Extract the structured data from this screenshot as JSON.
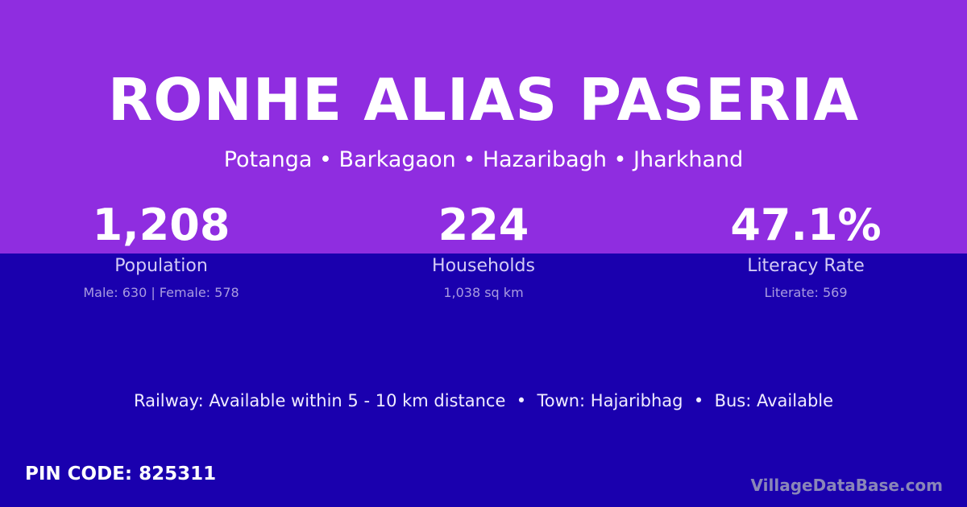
{
  "title": "RONHE ALIAS PASERIA",
  "subtitle": "Potanga • Barkagaon • Hazaribagh • Jharkhand",
  "stats": [
    {
      "value": "1,208",
      "label": "Population",
      "detail": "Male: 630 | Female: 578"
    },
    {
      "value": "224",
      "label": "Households",
      "detail": "1,038 sq km"
    },
    {
      "value": "47.1%",
      "label": "Literacy Rate",
      "detail": "Literate: 569"
    }
  ],
  "info": "Railway: Available within 5 - 10 km distance  •  Town: Hajaribhag  •  Bus: Available",
  "pin": "PIN CODE: 825311",
  "brand": "VillageDataBase.com",
  "colors": {
    "top": "#8f2de0",
    "bottom": "#1a00ae"
  }
}
